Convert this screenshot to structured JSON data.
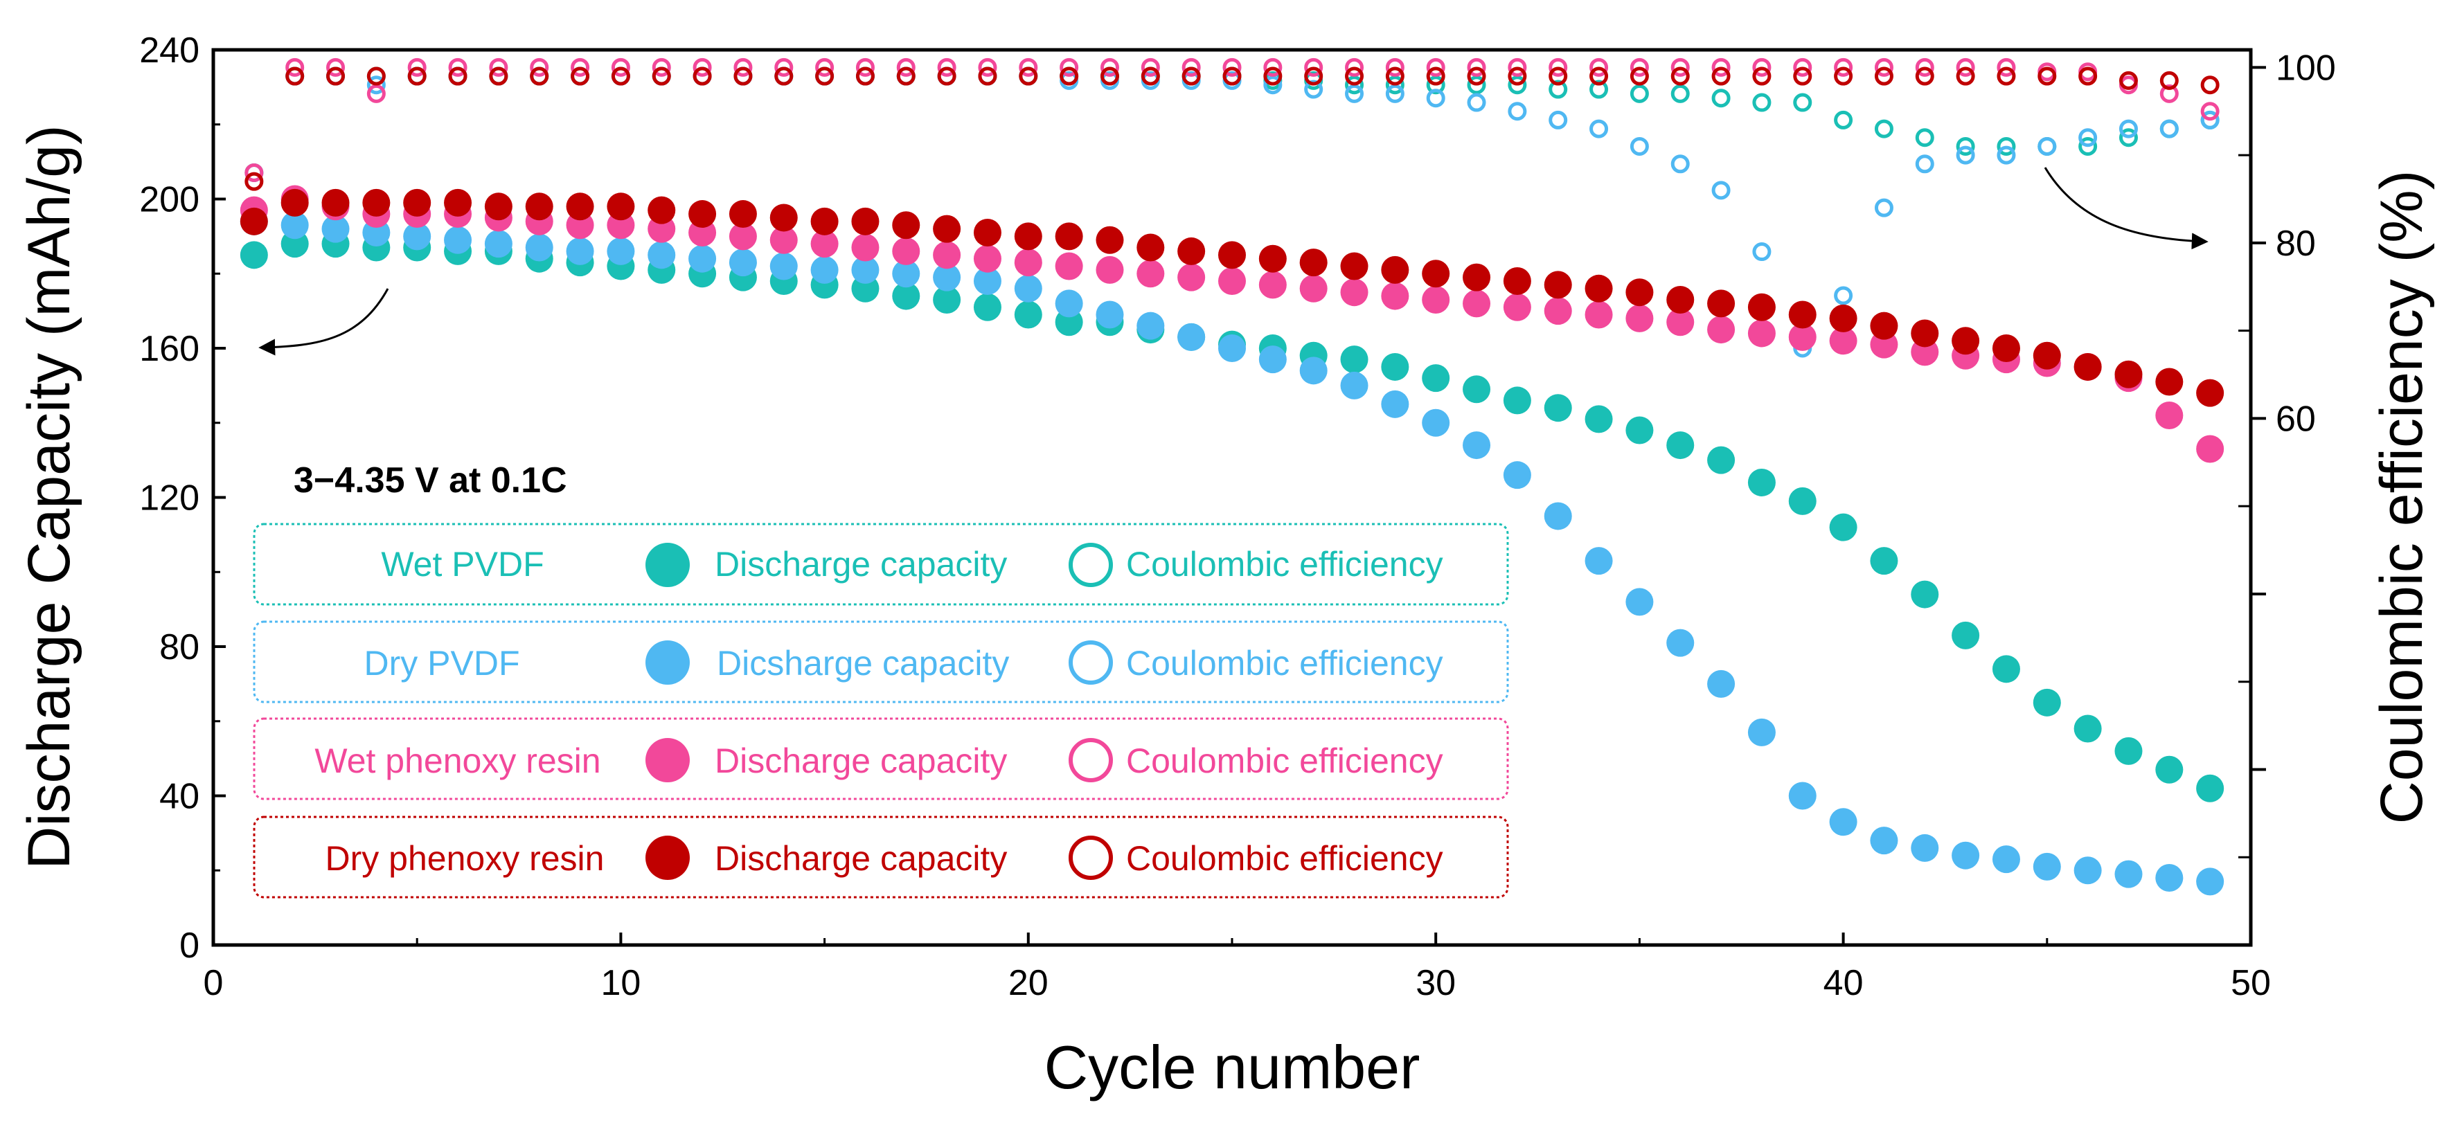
{
  "chart_data": {
    "type": "scatter",
    "title": "",
    "annotation": "3−4.35 V at 0.1C",
    "xlabel": "Cycle number",
    "ylabel_left": "Discharge Capacity (mAh/g)",
    "ylabel_right": "Coulombic efficiency (%)",
    "xlim": [
      0,
      50
    ],
    "ylim_left": [
      0,
      240
    ],
    "ylim_right": [
      0,
      102
    ],
    "x_ticks": [
      0,
      10,
      20,
      30,
      40,
      50
    ],
    "y_left_ticks": [
      0,
      40,
      80,
      120,
      160,
      200,
      240
    ],
    "y_right_ticks": [
      60,
      80,
      100
    ],
    "y_right_minor_ticks": [
      20,
      40
    ],
    "colors": {
      "wet_pvdf": "#1ABFB5",
      "dry_pvdf": "#4FB8F2",
      "wet_phenoxy": "#F2489A",
      "dry_phenoxy": "#C00000"
    },
    "series": [
      {
        "name": "Wet PVDF",
        "key": "wet_pvdf",
        "legend": {
          "label": "Wet PVDF",
          "capacity_label": "Discharge capacity",
          "ce_label": "Coulombic efficiency"
        },
        "cycles": [
          1,
          2,
          3,
          4,
          5,
          6,
          7,
          8,
          9,
          10,
          11,
          12,
          13,
          14,
          15,
          16,
          17,
          18,
          19,
          20,
          21,
          22,
          23,
          24,
          25,
          26,
          27,
          28,
          29,
          30,
          31,
          32,
          33,
          34,
          35,
          36,
          37,
          38,
          39,
          40,
          41,
          42,
          43,
          44,
          45,
          46,
          47,
          48,
          49
        ],
        "capacity": [
          185,
          188,
          188,
          187,
          187,
          186,
          186,
          184,
          183,
          182,
          181,
          180,
          179,
          178,
          177,
          176,
          174,
          173,
          171,
          169,
          167,
          167,
          165,
          163,
          161,
          160,
          158,
          157,
          155,
          152,
          149,
          146,
          144,
          141,
          138,
          134,
          130,
          124,
          119,
          112,
          103,
          94,
          83,
          74,
          65,
          58,
          52,
          47,
          42
        ],
        "coulombic_efficiency": [
          88,
          99,
          99,
          99,
          99,
          99,
          99,
          99,
          99,
          99,
          99,
          99,
          99,
          99,
          99,
          99,
          99,
          99,
          99,
          99,
          99,
          99,
          99,
          99,
          99,
          98.5,
          98.5,
          98,
          98,
          98,
          98,
          98,
          97.5,
          97.5,
          97,
          97,
          96.5,
          96,
          96,
          94,
          93,
          92,
          91,
          91,
          91,
          91,
          92,
          93,
          94
        ]
      },
      {
        "name": "Dry PVDF",
        "key": "dry_pvdf",
        "legend": {
          "label": "Dry PVDF",
          "capacity_label": "Dicsharge capacity",
          "ce_label": "Coulombic efficiency"
        },
        "cycles": [
          1,
          2,
          3,
          4,
          5,
          6,
          7,
          8,
          9,
          10,
          11,
          12,
          13,
          14,
          15,
          16,
          17,
          18,
          19,
          20,
          21,
          22,
          23,
          24,
          25,
          26,
          27,
          28,
          29,
          30,
          31,
          32,
          33,
          34,
          35,
          36,
          37,
          38,
          39,
          40,
          41,
          42,
          43,
          44,
          45,
          46,
          47,
          48,
          49
        ],
        "capacity": [
          194,
          193,
          192,
          191,
          190,
          189,
          188,
          187,
          186,
          186,
          185,
          184,
          183,
          182,
          181,
          181,
          180,
          179,
          178,
          176,
          172,
          169,
          166,
          163,
          160,
          157,
          154,
          150,
          145,
          140,
          134,
          126,
          115,
          103,
          92,
          81,
          70,
          57,
          40,
          33,
          28,
          26,
          24,
          23,
          21,
          20,
          19,
          18,
          17
        ],
        "coulombic_efficiency": [
          88,
          99,
          99,
          98,
          99,
          99,
          99,
          99,
          99,
          99,
          99,
          99,
          99,
          99,
          99,
          99,
          99,
          99,
          99,
          99,
          98.5,
          98.5,
          98.5,
          98.5,
          98.5,
          98,
          97.5,
          97,
          97,
          96.5,
          96,
          95,
          94,
          93,
          91,
          89,
          86,
          79,
          68,
          74,
          84,
          89,
          90,
          90,
          91,
          92,
          93,
          93,
          94
        ]
      },
      {
        "name": "Wet phenoxy resin",
        "key": "wet_phenoxy",
        "legend": {
          "label": "Wet phenoxy resin",
          "capacity_label": "Discharge capacity",
          "ce_label": "Coulombic efficiency"
        },
        "cycles": [
          1,
          2,
          3,
          4,
          5,
          6,
          7,
          8,
          9,
          10,
          11,
          12,
          13,
          14,
          15,
          16,
          17,
          18,
          19,
          20,
          21,
          22,
          23,
          24,
          25,
          26,
          27,
          28,
          29,
          30,
          31,
          32,
          33,
          34,
          35,
          36,
          37,
          38,
          39,
          40,
          41,
          42,
          43,
          44,
          45,
          46,
          47,
          48,
          49
        ],
        "capacity": [
          197,
          200,
          198,
          196,
          196,
          196,
          195,
          194,
          193,
          193,
          192,
          191,
          190,
          189,
          188,
          187,
          186,
          185,
          184,
          183,
          182,
          181,
          180,
          179,
          178,
          177,
          176,
          175,
          174,
          173,
          172,
          171,
          170,
          169,
          168,
          167,
          165,
          164,
          163,
          162,
          161,
          159,
          158,
          157,
          156,
          155,
          152,
          142,
          133
        ],
        "coulombic_efficiency": [
          88,
          100,
          100,
          97,
          100,
          100,
          100,
          100,
          100,
          100,
          100,
          100,
          100,
          100,
          100,
          100,
          100,
          100,
          100,
          100,
          100,
          100,
          100,
          100,
          100,
          100,
          100,
          100,
          100,
          100,
          100,
          100,
          100,
          100,
          100,
          100,
          100,
          100,
          100,
          100,
          100,
          100,
          100,
          100,
          99.5,
          99.5,
          98,
          97,
          95
        ]
      },
      {
        "name": "Dry phenoxy resin",
        "key": "dry_phenoxy",
        "legend": {
          "label": "Dry phenoxy resin",
          "capacity_label": "Discharge capacity",
          "ce_label": "Coulombic efficiency"
        },
        "cycles": [
          1,
          2,
          3,
          4,
          5,
          6,
          7,
          8,
          9,
          10,
          11,
          12,
          13,
          14,
          15,
          16,
          17,
          18,
          19,
          20,
          21,
          22,
          23,
          24,
          25,
          26,
          27,
          28,
          29,
          30,
          31,
          32,
          33,
          34,
          35,
          36,
          37,
          38,
          39,
          40,
          41,
          42,
          43,
          44,
          45,
          46,
          47,
          48,
          49
        ],
        "capacity": [
          194,
          199,
          199,
          199,
          199,
          199,
          198,
          198,
          198,
          198,
          197,
          196,
          196,
          195,
          194,
          194,
          193,
          192,
          191,
          190,
          190,
          189,
          187,
          186,
          185,
          184,
          183,
          182,
          181,
          180,
          179,
          178,
          177,
          176,
          175,
          173,
          172,
          171,
          169,
          168,
          166,
          164,
          162,
          160,
          158,
          155,
          153,
          151,
          148
        ],
        "coulombic_efficiency": [
          87,
          99,
          99,
          99,
          99,
          99,
          99,
          99,
          99,
          99,
          99,
          99,
          99,
          99,
          99,
          99,
          99,
          99,
          99,
          99,
          99,
          99,
          99,
          99,
          99,
          99,
          99,
          99,
          99,
          99,
          99,
          99,
          99,
          99,
          99,
          99,
          99,
          99,
          99,
          99,
          99,
          99,
          99,
          99,
          99,
          99,
          98.5,
          98.5,
          98
        ]
      }
    ]
  }
}
